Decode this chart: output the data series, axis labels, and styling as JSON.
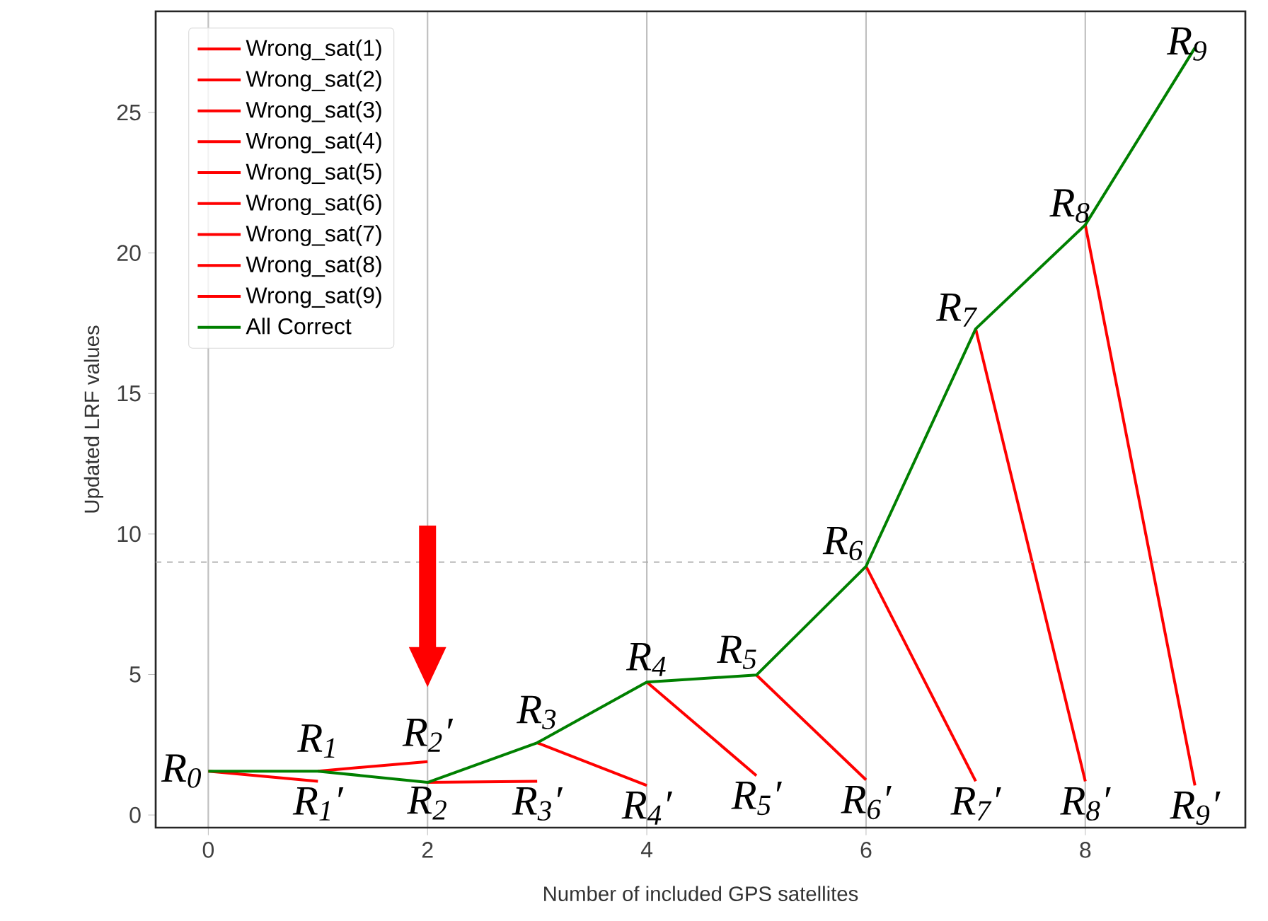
{
  "chart_data": {
    "type": "line",
    "xlabel": "Number of included GPS satellites",
    "ylabel": "Updated LRF values",
    "xlim": [
      -0.48,
      9.46
    ],
    "ylim": [
      -0.45,
      28.6
    ],
    "xticks": [
      0,
      2,
      4,
      6,
      8
    ],
    "yticks": [
      0,
      5,
      10,
      15,
      20,
      25
    ],
    "grid": "x",
    "legend": "top left",
    "line_style": "solid",
    "series": [
      {
        "name": "Wrong_sat(1)",
        "color": "#ff0000",
        "x": [
          0,
          1
        ],
        "values": [
          1.56,
          1.2
        ]
      },
      {
        "name": "Wrong_sat(2)",
        "color": "#ff0000",
        "x": [
          1,
          2
        ],
        "values": [
          1.56,
          1.9
        ]
      },
      {
        "name": "Wrong_sat(3)",
        "color": "#ff0000",
        "x": [
          2,
          3
        ],
        "values": [
          1.16,
          1.2
        ]
      },
      {
        "name": "Wrong_sat(4)",
        "color": "#ff0000",
        "x": [
          3,
          4
        ],
        "values": [
          2.57,
          1.05
        ]
      },
      {
        "name": "Wrong_sat(5)",
        "color": "#ff0000",
        "x": [
          4,
          5
        ],
        "values": [
          4.73,
          1.4
        ]
      },
      {
        "name": "Wrong_sat(6)",
        "color": "#ff0000",
        "x": [
          5,
          6
        ],
        "values": [
          4.98,
          1.25
        ]
      },
      {
        "name": "Wrong_sat(7)",
        "color": "#ff0000",
        "x": [
          6,
          7
        ],
        "values": [
          8.85,
          1.2
        ]
      },
      {
        "name": "Wrong_sat(8)",
        "color": "#ff0000",
        "x": [
          7,
          8
        ],
        "values": [
          17.3,
          1.2
        ]
      },
      {
        "name": "Wrong_sat(9)",
        "color": "#ff0000",
        "x": [
          8,
          9
        ],
        "values": [
          21.0,
          1.05
        ]
      },
      {
        "name": "All Correct",
        "color": "#008000",
        "x": [
          0,
          1,
          2,
          3,
          4,
          5,
          6,
          7,
          8,
          9
        ],
        "values": [
          1.56,
          1.56,
          1.16,
          2.57,
          4.73,
          4.98,
          8.85,
          17.3,
          21.0,
          27.3
        ]
      }
    ],
    "ref_lines": [
      {
        "axis": "y",
        "value": 9.0,
        "color": "#aaaaaa",
        "line_style": "dashed"
      }
    ],
    "annotations": [
      {
        "text": "R$_{0}$",
        "x": 0,
        "y": 1.56
      },
      {
        "text": "R$_{1}$",
        "x": 1,
        "y": 1.56
      },
      {
        "text": "R$_{2}$",
        "x": 2,
        "y": 1.16
      },
      {
        "text": "R$_{3}$",
        "x": 3,
        "y": 2.57
      },
      {
        "text": "R$_{4}$",
        "x": 4,
        "y": 4.73
      },
      {
        "text": "R$_{5}$",
        "x": 5,
        "y": 4.98
      },
      {
        "text": "R$_{6}$",
        "x": 6,
        "y": 8.85
      },
      {
        "text": "R$_{7}$",
        "x": 7,
        "y": 17.3
      },
      {
        "text": "R$_{8}$",
        "x": 8,
        "y": 21.0
      },
      {
        "text": "R$_{9}$",
        "x": 9,
        "y": 27.3
      },
      {
        "text": "R$_{1}$′",
        "x": 1,
        "y": 1.2
      },
      {
        "text": "R$_{2}$′",
        "x": 2,
        "y": 1.9
      },
      {
        "text": "R$_{3}$′",
        "x": 3,
        "y": 1.2
      },
      {
        "text": "R$_{4}$′",
        "x": 4,
        "y": 1.05
      },
      {
        "text": "R$_{5}$′",
        "x": 5,
        "y": 1.4
      },
      {
        "text": "R$_{6}$′",
        "x": 6,
        "y": 1.25
      },
      {
        "text": "R$_{7}$′",
        "x": 7,
        "y": 1.2
      },
      {
        "text": "R$_{8}$′",
        "x": 8,
        "y": 1.2
      },
      {
        "text": "R$_{9}$′",
        "x": 9,
        "y": 1.05
      }
    ]
  }
}
